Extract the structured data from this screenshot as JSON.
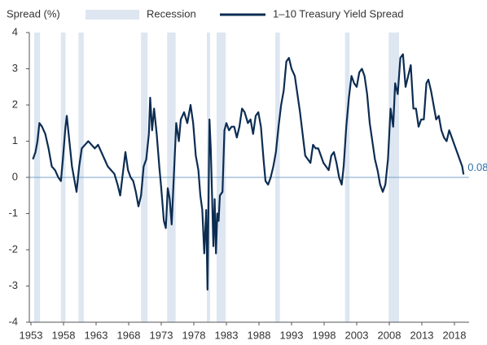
{
  "chart_data": {
    "type": "line",
    "y_label": "Spread (%)",
    "recession_name": "Recession",
    "recession_color": "#dde6f1",
    "recessions": [
      [
        1953.5,
        1954.4
      ],
      [
        1957.6,
        1958.3
      ],
      [
        1960.3,
        1961.1
      ],
      [
        1969.9,
        1970.9
      ],
      [
        1973.9,
        1975.2
      ],
      [
        1980.0,
        1980.5
      ],
      [
        1981.5,
        1982.9
      ],
      [
        1990.5,
        1991.2
      ],
      [
        2001.2,
        2001.9
      ],
      [
        2007.9,
        2009.5
      ]
    ],
    "xlim": [
      1952.75,
      2020.25
    ],
    "xticks": [
      1953,
      1958,
      1963,
      1968,
      1973,
      1978,
      1983,
      1988,
      1993,
      1998,
      2003,
      2008,
      2013,
      2018
    ],
    "ylim": [
      -4,
      4
    ],
    "yticks": [
      4,
      3,
      2,
      1,
      0,
      -1,
      -2,
      -3,
      -4
    ],
    "x": [
      1953.3,
      1953.7,
      1954.0,
      1954.3,
      1954.7,
      1955.2,
      1955.7,
      1956.2,
      1956.7,
      1957.2,
      1957.6,
      1957.9,
      1958.3,
      1958.5,
      1958.9,
      1959.3,
      1959.7,
      1960.0,
      1960.4,
      1960.8,
      1961.3,
      1961.8,
      1962.3,
      1962.8,
      1963.3,
      1963.8,
      1964.3,
      1964.8,
      1965.3,
      1965.8,
      1966.3,
      1966.7,
      1967.1,
      1967.5,
      1967.9,
      1968.3,
      1968.7,
      1969.1,
      1969.5,
      1969.9,
      1970.3,
      1970.7,
      1971.1,
      1971.3,
      1971.6,
      1971.9,
      1972.3,
      1972.7,
      1973.0,
      1973.4,
      1973.7,
      1974.0,
      1974.3,
      1974.6,
      1975.0,
      1975.3,
      1975.7,
      1976.0,
      1976.5,
      1977.0,
      1977.5,
      1977.9,
      1978.3,
      1978.7,
      1979.0,
      1979.3,
      1979.6,
      1979.9,
      1980.1,
      1980.4,
      1980.6,
      1980.8,
      1981.0,
      1981.2,
      1981.4,
      1981.6,
      1981.8,
      1982.0,
      1982.4,
      1982.7,
      1983.0,
      1983.4,
      1983.8,
      1984.2,
      1984.6,
      1985.0,
      1985.4,
      1985.8,
      1986.3,
      1986.7,
      1987.1,
      1987.5,
      1987.9,
      1988.3,
      1988.7,
      1989.0,
      1989.4,
      1989.8,
      1990.2,
      1990.6,
      1991.0,
      1991.4,
      1991.8,
      1992.2,
      1992.6,
      1993.0,
      1993.5,
      1993.9,
      1994.3,
      1994.7,
      1995.1,
      1995.5,
      1995.9,
      1996.3,
      1996.7,
      1997.1,
      1997.5,
      1997.9,
      1998.3,
      1998.7,
      1999.1,
      1999.5,
      1999.9,
      2000.3,
      2000.7,
      2001.0,
      2001.4,
      2001.8,
      2002.2,
      2002.6,
      2003.0,
      2003.4,
      2003.8,
      2004.2,
      2004.6,
      2005.0,
      2005.4,
      2005.8,
      2006.2,
      2006.6,
      2007.0,
      2007.4,
      2007.8,
      2008.2,
      2008.6,
      2008.9,
      2009.3,
      2009.7,
      2010.1,
      2010.5,
      2010.9,
      2011.3,
      2011.7,
      2012.1,
      2012.5,
      2012.9,
      2013.3,
      2013.7,
      2014.0,
      2014.4,
      2014.8,
      2015.2,
      2015.6,
      2016.0,
      2016.4,
      2016.8,
      2017.2,
      2017.6,
      2018.0,
      2018.4,
      2018.8,
      2019.2,
      2019.4
    ],
    "series": [
      {
        "name": "1–10 Treasury Yield Spread",
        "color": "#0c2c52",
        "values": [
          0.5,
          0.7,
          1.0,
          1.5,
          1.4,
          1.2,
          0.8,
          0.3,
          0.2,
          0.0,
          -0.1,
          0.5,
          1.4,
          1.7,
          1.0,
          0.3,
          -0.1,
          -0.4,
          0.3,
          0.8,
          0.9,
          1.0,
          0.9,
          0.8,
          0.9,
          0.7,
          0.5,
          0.3,
          0.2,
          0.1,
          -0.2,
          -0.5,
          0.1,
          0.7,
          0.2,
          0.0,
          -0.1,
          -0.4,
          -0.8,
          -0.5,
          0.3,
          0.5,
          1.2,
          2.2,
          1.3,
          1.9,
          1.2,
          0.3,
          -0.3,
          -1.2,
          -1.4,
          -0.3,
          -0.6,
          -1.3,
          0.3,
          1.5,
          1.0,
          1.6,
          1.8,
          1.5,
          2.0,
          1.5,
          0.6,
          0.2,
          -0.5,
          -0.9,
          -2.1,
          -0.9,
          -3.1,
          1.6,
          0.8,
          -0.5,
          -1.9,
          -0.6,
          -2.1,
          -1.0,
          -1.2,
          -0.5,
          -0.4,
          1.3,
          1.5,
          1.3,
          1.4,
          1.4,
          1.1,
          1.4,
          1.9,
          1.8,
          1.5,
          1.6,
          1.2,
          1.7,
          1.8,
          1.4,
          0.5,
          -0.1,
          -0.2,
          0.0,
          0.3,
          0.7,
          1.4,
          2.0,
          2.4,
          3.2,
          3.3,
          3.0,
          2.8,
          2.3,
          1.8,
          1.2,
          0.6,
          0.5,
          0.4,
          0.9,
          0.8,
          0.8,
          0.6,
          0.4,
          0.3,
          0.2,
          0.6,
          0.7,
          0.4,
          0.0,
          -0.2,
          0.3,
          1.4,
          2.2,
          2.8,
          2.6,
          2.5,
          2.9,
          3.0,
          2.8,
          2.3,
          1.5,
          1.0,
          0.5,
          0.2,
          -0.2,
          -0.4,
          -0.2,
          0.5,
          1.9,
          1.4,
          2.6,
          2.3,
          3.3,
          3.4,
          2.5,
          2.8,
          3.1,
          1.9,
          1.9,
          1.4,
          1.6,
          1.6,
          2.6,
          2.7,
          2.4,
          2.0,
          1.6,
          1.7,
          1.3,
          1.1,
          1.0,
          1.3,
          1.1,
          0.9,
          0.7,
          0.5,
          0.3,
          0.08
        ]
      }
    ]
  }
}
